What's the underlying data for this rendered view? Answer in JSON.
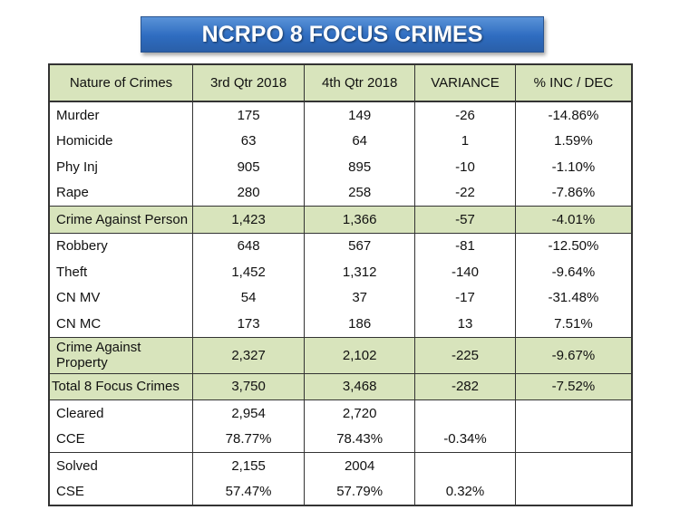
{
  "title": "NCRPO 8 FOCUS CRIMES",
  "colors": {
    "banner": "#2e6cc0",
    "header_fill": "#d8e4bc",
    "subtotal_fill": "#d8e4bc"
  },
  "headers": [
    "Nature of Crimes",
    "3rd Qtr 2018",
    "4th Qtr 2018",
    "VARIANCE",
    "% INC / DEC"
  ],
  "rows": [
    [
      "Murder",
      "175",
      "149",
      "-26",
      "-14.86%"
    ],
    [
      "Homicide",
      "63",
      "64",
      "1",
      "1.59%"
    ],
    [
      "Phy Inj",
      "905",
      "895",
      "-10",
      "-1.10%"
    ],
    [
      "Rape",
      "280",
      "258",
      "-22",
      "-7.86%"
    ],
    [
      "Crime Against Person",
      "1,423",
      "1,366",
      "-57",
      "-4.01%"
    ],
    [
      "Robbery",
      "648",
      "567",
      "-81",
      "-12.50%"
    ],
    [
      "Theft",
      "1,452",
      "1,312",
      "-140",
      "-9.64%"
    ],
    [
      "CN MV",
      "54",
      "37",
      "-17",
      "-31.48%"
    ],
    [
      "CN MC",
      "173",
      "186",
      "13",
      "7.51%"
    ],
    [
      "Crime Against Property",
      "2,327",
      "2,102",
      "-225",
      "-9.67%"
    ],
    [
      "Total 8 Focus Crimes",
      "3,750",
      "3,468",
      "-282",
      "-7.52%"
    ],
    [
      "Cleared",
      "2,954",
      "2,720",
      "",
      ""
    ],
    [
      "CCE",
      "78.77%",
      "78.43%",
      "-0.34%",
      ""
    ],
    [
      "Solved",
      "2,155",
      "2004",
      "",
      ""
    ],
    [
      "CSE",
      "57.47%",
      "57.79%",
      "0.32%",
      ""
    ]
  ]
}
